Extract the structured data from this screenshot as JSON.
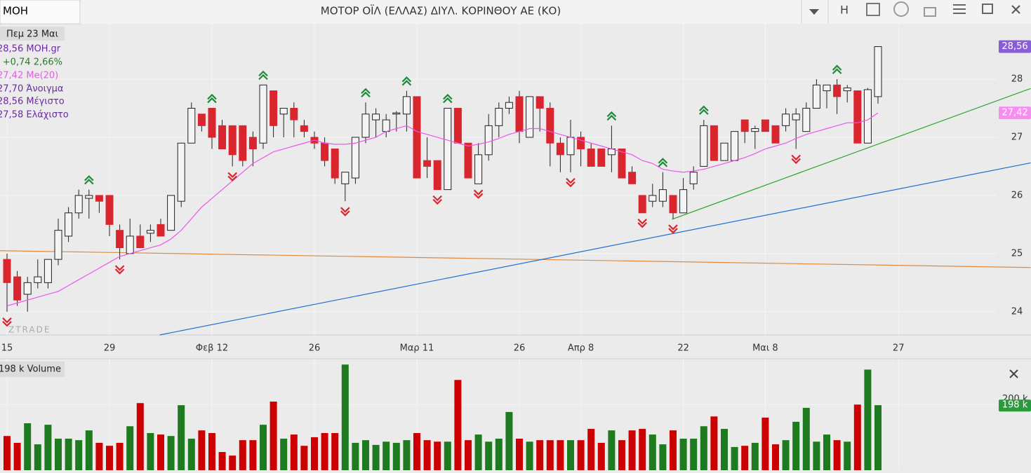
{
  "header": {
    "tab": "MOH",
    "title": "ΜΟΤΟΡ ΟΪΛ (ΕΛΛΑΣ) ΔΙΥΛ. ΚΟΡΙΝΘΟΥ ΑΕ (ΚΟ)",
    "button": "H"
  },
  "legend": {
    "date": "Πεμ 23 Μαι",
    "price": "28,56 MOH.gr",
    "change": "+0,74 2,66%",
    "ma": "27,42 Me(20)",
    "open": "27,70 Άνοιγμα",
    "high": "28,56 Μέγιστο",
    "low": "27,58 Ελάχιστο"
  },
  "watermark": "ZTRADE",
  "chart_data": {
    "type": "candlestick",
    "categories": [
      "15",
      null,
      null,
      null,
      null,
      null,
      null,
      null,
      null,
      null,
      "29",
      null,
      null,
      null,
      null,
      null,
      null,
      null,
      null,
      null,
      "Φεβ 12",
      null,
      null,
      null,
      null,
      null,
      null,
      null,
      null,
      null,
      "26",
      null,
      null,
      null,
      null,
      null,
      null,
      null,
      null,
      null,
      "Μαρ 11",
      null,
      null,
      null,
      null,
      null,
      null,
      null,
      null,
      null,
      "26",
      null,
      null,
      null,
      null,
      null,
      "Απρ 8",
      null,
      null,
      null,
      null,
      null,
      null,
      null,
      null,
      null,
      "22",
      null,
      null,
      null,
      null,
      null,
      null,
      null,
      "Μαι 8",
      null,
      null,
      null,
      null,
      null,
      null,
      null,
      null,
      null,
      null,
      null,
      null,
      "27"
    ],
    "open": [
      24.9,
      24.6,
      24.3,
      24.5,
      24.5,
      24.9,
      25.3,
      25.7,
      25.95,
      26.0,
      26.0,
      25.4,
      25.0,
      25.3,
      25.35,
      25.5,
      25.4,
      25.9,
      26.9,
      27.4,
      27.5,
      27.2,
      27.2,
      27.2,
      27.0,
      26.9,
      27.8,
      27.4,
      27.5,
      27.2,
      27.0,
      26.9,
      26.8,
      26.2,
      26.3,
      27.0,
      27.3,
      27.1,
      27.4,
      27.4,
      27.7,
      26.6,
      26.6,
      26.1,
      27.5,
      26.9,
      26.2,
      26.7,
      27.2,
      27.5,
      27.7,
      27.0,
      27.7,
      27.5,
      26.9,
      26.7,
      27.0,
      26.8,
      26.8,
      26.7,
      26.8,
      26.4,
      26.0,
      25.9,
      25.9,
      26.0,
      25.7,
      26.2,
      26.5,
      27.2,
      26.6,
      26.6,
      27.3,
      27.1,
      27.3,
      27.2,
      27.2,
      27.3,
      27.1,
      27.5,
      27.8,
      27.9,
      27.8,
      27.8,
      26.9,
      27.7,
      null,
      null
    ],
    "high": [
      25.0,
      24.7,
      24.6,
      24.9,
      24.9,
      25.6,
      25.8,
      26.1,
      26.1,
      26.0,
      26.0,
      25.5,
      25.6,
      25.5,
      25.5,
      25.6,
      26.0,
      26.9,
      27.6,
      27.4,
      27.5,
      27.3,
      27.2,
      27.2,
      27.1,
      27.9,
      27.8,
      27.5,
      27.6,
      27.3,
      27.1,
      27.0,
      26.8,
      26.4,
      27.0,
      27.6,
      27.5,
      27.4,
      27.45,
      27.8,
      27.7,
      27.0,
      26.6,
      27.5,
      27.5,
      26.9,
      26.9,
      27.4,
      27.6,
      27.7,
      27.8,
      27.7,
      27.7,
      27.6,
      27.0,
      27.3,
      27.1,
      26.9,
      26.8,
      27.2,
      26.8,
      26.5,
      26.0,
      26.2,
      26.4,
      26.0,
      26.3,
      26.5,
      27.3,
      27.2,
      26.9,
      27.1,
      27.3,
      27.2,
      27.3,
      27.2,
      27.5,
      27.5,
      27.6,
      28.0,
      27.9,
      28.0,
      27.9,
      27.8,
      27.85,
      28.56,
      null,
      null
    ],
    "low": [
      24.0,
      24.1,
      24.0,
      24.4,
      24.4,
      24.8,
      25.2,
      25.6,
      25.6,
      25.7,
      25.3,
      24.9,
      25.0,
      25.1,
      25.2,
      25.3,
      25.4,
      25.8,
      26.9,
      27.1,
      26.8,
      26.8,
      26.5,
      26.5,
      26.5,
      26.8,
      27.0,
      27.0,
      27.0,
      27.0,
      26.8,
      26.5,
      26.2,
      25.9,
      26.2,
      26.9,
      27.0,
      27.0,
      27.1,
      27.1,
      26.3,
      26.3,
      26.1,
      26.1,
      26.9,
      26.3,
      26.2,
      26.6,
      27.0,
      27.4,
      26.9,
      27.0,
      27.1,
      26.5,
      26.4,
      26.4,
      26.5,
      26.5,
      26.5,
      26.4,
      26.3,
      26.2,
      25.7,
      25.8,
      25.8,
      25.6,
      25.7,
      26.1,
      26.5,
      26.6,
      26.6,
      26.6,
      26.9,
      26.8,
      27.1,
      26.9,
      27.1,
      26.8,
      27.1,
      27.5,
      27.5,
      27.4,
      27.6,
      26.9,
      26.9,
      27.58,
      null,
      null
    ],
    "close": [
      24.5,
      24.2,
      24.5,
      24.6,
      24.9,
      25.4,
      25.7,
      26.0,
      26.0,
      25.9,
      25.5,
      25.1,
      25.3,
      25.1,
      25.4,
      25.3,
      26.0,
      26.9,
      27.5,
      27.2,
      27.0,
      26.8,
      26.7,
      26.6,
      26.8,
      27.9,
      27.2,
      27.5,
      27.3,
      27.1,
      26.9,
      26.6,
      26.3,
      26.4,
      27.0,
      27.4,
      27.4,
      27.3,
      27.42,
      27.7,
      26.3,
      26.5,
      26.1,
      27.5,
      26.9,
      26.3,
      26.7,
      27.2,
      27.5,
      27.6,
      27.1,
      27.7,
      27.5,
      26.9,
      26.7,
      27.0,
      26.8,
      26.5,
      26.5,
      26.8,
      26.3,
      26.2,
      25.7,
      26.0,
      26.1,
      25.7,
      26.1,
      26.4,
      27.2,
      26.6,
      26.9,
      27.1,
      27.1,
      27.15,
      27.1,
      26.9,
      27.4,
      27.4,
      27.5,
      27.9,
      27.9,
      27.7,
      27.85,
      26.9,
      27.82,
      28.56,
      null,
      null
    ],
    "ma": {
      "name": "Me(20)",
      "color": "#ee55ee",
      "values": [
        24.1,
        24.15,
        24.2,
        24.25,
        24.3,
        24.35,
        24.45,
        24.55,
        24.65,
        24.75,
        24.85,
        24.95,
        25.0,
        25.05,
        25.1,
        25.15,
        25.25,
        25.4,
        25.6,
        25.8,
        25.95,
        26.1,
        26.25,
        26.4,
        26.55,
        26.65,
        26.75,
        26.8,
        26.85,
        26.9,
        26.95,
        26.9,
        26.88,
        26.88,
        26.9,
        26.95,
        27.0,
        27.1,
        27.15,
        27.2,
        27.1,
        27.05,
        27.0,
        26.95,
        26.9,
        26.85,
        26.88,
        26.92,
        26.98,
        27.05,
        27.1,
        27.15,
        27.15,
        27.1,
        27.05,
        27.0,
        26.95,
        26.9,
        26.85,
        26.8,
        26.75,
        26.7,
        26.6,
        26.55,
        26.45,
        26.42,
        26.4,
        26.42,
        26.45,
        26.5,
        26.55,
        26.6,
        26.65,
        26.72,
        26.8,
        26.85,
        26.9,
        26.98,
        27.05,
        27.1,
        27.15,
        27.2,
        27.25,
        27.25,
        27.3,
        27.42,
        null,
        null
      ]
    },
    "up_color": "#f4f4f4",
    "down_color": "#d9262e",
    "vol_up_color": "#1e7a1e",
    "vol_down_color": "#cc0000",
    "ylim": [
      23.6,
      28.94
    ],
    "yticks": [
      24,
      25,
      26,
      27,
      28
    ],
    "grid": true,
    "price_badge": "28,56",
    "ma_badge": "27,42",
    "signals_up": [
      8,
      20,
      25,
      35,
      39,
      43,
      59,
      64,
      68,
      81
    ],
    "signals_down": [
      0,
      11,
      22,
      33,
      42,
      46,
      55,
      62,
      65,
      77
    ],
    "trendlines": [
      {
        "color": "#e08a3c",
        "x": [
          -0.7,
          99.9
        ],
        "y": [
          25.05,
          24.76
        ]
      },
      {
        "color": "#1f6fd0",
        "x": [
          14.9,
          99.9
        ],
        "y": [
          23.6,
          26.56
        ]
      },
      {
        "color": "#2ea32e",
        "x": [
          64.9,
          99.9
        ],
        "y": [
          25.59,
          27.84
        ]
      }
    ],
    "volume": {
      "title": "198 k Volume",
      "badge": "198 k",
      "values": [
        94,
        71,
        137,
        66,
        132,
        85,
        85,
        80,
        113,
        71,
        61,
        71,
        127,
        205,
        104,
        99,
        94,
        198,
        85,
        113,
        104,
        40,
        28,
        80,
        80,
        132,
        210,
        85,
        99,
        61,
        90,
        104,
        104,
        335,
        71,
        80,
        64,
        75,
        71,
        80,
        104,
        80,
        75,
        75,
        283,
        80,
        99,
        75,
        85,
        175,
        85,
        75,
        80,
        80,
        80,
        80,
        80,
        118,
        71,
        113,
        80,
        113,
        118,
        99,
        66,
        113,
        85,
        85,
        127,
        160,
        118,
        57,
        61,
        71,
        156,
        66,
        80,
        142,
        189,
        75,
        99,
        80,
        75,
        200,
        318,
        198,
        null,
        null
      ],
      "ylim": [
        0,
        345
      ],
      "yticks": [
        {
          "value": 200,
          "label": "200 k"
        }
      ]
    }
  }
}
